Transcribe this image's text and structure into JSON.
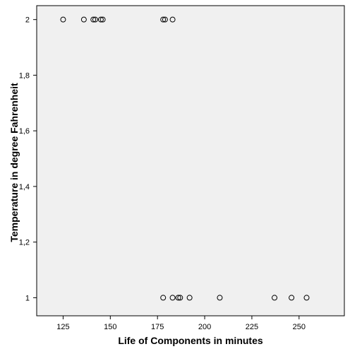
{
  "chart_data": {
    "type": "scatter",
    "title": "",
    "xlabel": "Life of Components in minutes",
    "ylabel": "Temperature in degree Fahrenheit",
    "xlim": [
      111,
      274
    ],
    "ylim": [
      0.935,
      2.05
    ],
    "x_ticks": [
      125,
      150,
      175,
      200,
      225,
      250
    ],
    "x_tick_labels": [
      "125",
      "150",
      "175",
      "200",
      "225",
      "250"
    ],
    "y_ticks": [
      1,
      1.2,
      1.4,
      1.6,
      1.8,
      2
    ],
    "y_tick_labels": [
      "1",
      "1,2",
      "1,4",
      "1,6",
      "1,8",
      "2"
    ],
    "grid": false,
    "legend": "none",
    "series": [
      {
        "points": [
          {
            "x": 125,
            "y": 2
          },
          {
            "x": 136,
            "y": 2
          },
          {
            "x": 141,
            "y": 2
          },
          {
            "x": 142,
            "y": 2
          },
          {
            "x": 145,
            "y": 2
          },
          {
            "x": 146,
            "y": 2
          },
          {
            "x": 178,
            "y": 2
          },
          {
            "x": 179,
            "y": 2
          },
          {
            "x": 183,
            "y": 2
          },
          {
            "x": 178,
            "y": 1
          },
          {
            "x": 183,
            "y": 1
          },
          {
            "x": 186,
            "y": 1
          },
          {
            "x": 187,
            "y": 1
          },
          {
            "x": 192,
            "y": 1
          },
          {
            "x": 208,
            "y": 1
          },
          {
            "x": 237,
            "y": 1
          },
          {
            "x": 246,
            "y": 1
          },
          {
            "x": 254,
            "y": 1
          }
        ]
      }
    ]
  },
  "colors": {
    "plot_background": "#f0f0f0",
    "marker_stroke": "#000000",
    "axis": "#000000"
  }
}
